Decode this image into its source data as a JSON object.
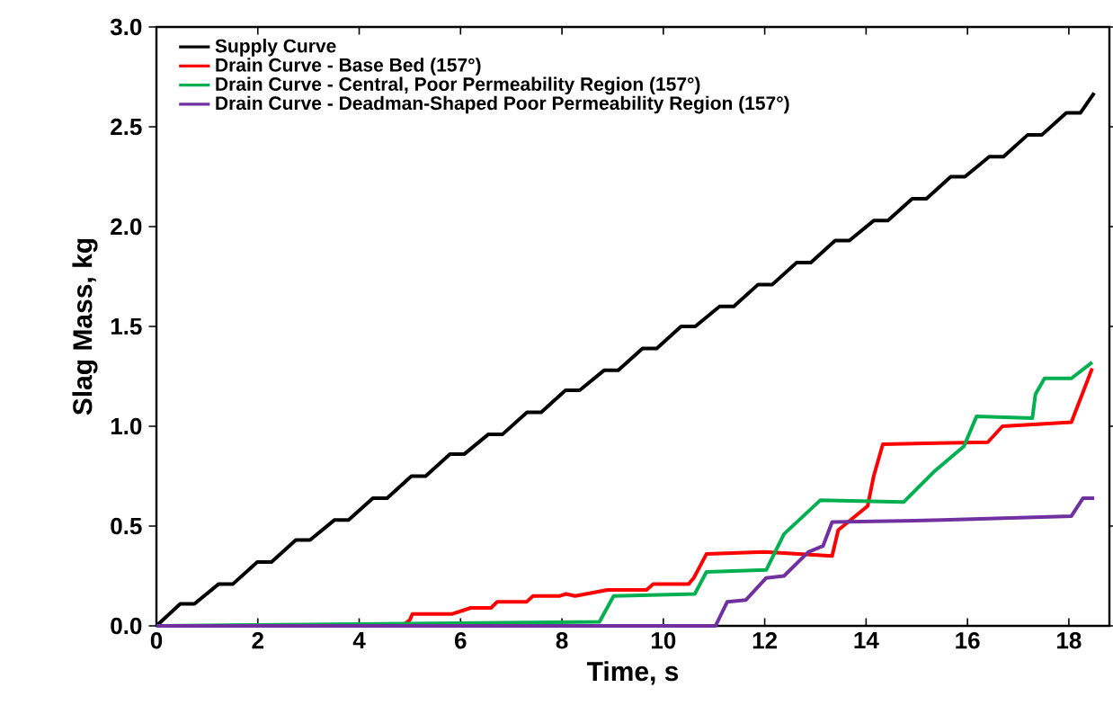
{
  "chart_data": {
    "type": "line",
    "xlabel": "Time, s",
    "ylabel": "Slag Mass, kg",
    "xlim": [
      0,
      18.8
    ],
    "ylim": [
      0,
      3.0
    ],
    "xticks": [
      0,
      2,
      4,
      6,
      8,
      10,
      12,
      14,
      16,
      18
    ],
    "yticks": [
      {
        "value": 0,
        "label": "0.0"
      },
      {
        "value": 0.5,
        "label": "0.5"
      },
      {
        "value": 1,
        "label": "1.0"
      },
      {
        "value": 1.5,
        "label": "1.5"
      },
      {
        "value": 2,
        "label": "2.0"
      },
      {
        "value": 2.5,
        "label": "2.5"
      },
      {
        "value": 3,
        "label": "3.0"
      }
    ],
    "legend": "top left",
    "series": [
      {
        "name": "Supply Curve",
        "color": "#000000",
        "x": [
          0,
          0.47,
          0.75,
          1.23,
          1.51,
          1.99,
          2.27,
          2.75,
          3.03,
          3.51,
          3.79,
          4.27,
          4.55,
          5.03,
          5.31,
          5.79,
          6.07,
          6.55,
          6.83,
          7.31,
          7.59,
          8.07,
          8.35,
          8.83,
          9.11,
          9.59,
          9.87,
          10.35,
          10.63,
          11.11,
          11.39,
          11.87,
          12.15,
          12.63,
          12.91,
          13.39,
          13.67,
          14.15,
          14.43,
          14.91,
          15.19,
          15.67,
          15.95,
          16.43,
          16.71,
          17.19,
          17.47,
          17.95,
          18.23,
          18.5
        ],
        "values": [
          0,
          0.11,
          0.11,
          0.21,
          0.21,
          0.32,
          0.32,
          0.43,
          0.43,
          0.53,
          0.53,
          0.64,
          0.64,
          0.75,
          0.75,
          0.86,
          0.86,
          0.96,
          0.96,
          1.07,
          1.07,
          1.18,
          1.18,
          1.28,
          1.28,
          1.39,
          1.39,
          1.5,
          1.5,
          1.6,
          1.6,
          1.71,
          1.71,
          1.82,
          1.82,
          1.93,
          1.93,
          2.03,
          2.03,
          2.14,
          2.14,
          2.25,
          2.25,
          2.35,
          2.35,
          2.46,
          2.46,
          2.57,
          2.57,
          2.67
        ]
      },
      {
        "name": "Drain Curve - Base  Bed (157°)",
        "color": "#ff0000",
        "x": [
          0,
          4.0,
          4.9,
          5.0,
          5.05,
          5.84,
          6.2,
          6.6,
          6.72,
          7.3,
          7.43,
          7.96,
          8.08,
          8.26,
          8.9,
          9.67,
          9.8,
          10.5,
          10.6,
          10.85,
          12.0,
          13.33,
          13.45,
          14.03,
          14.15,
          14.33,
          16.4,
          16.69,
          18.05,
          18.46
        ],
        "values": [
          0,
          0,
          0.01,
          0.03,
          0.06,
          0.06,
          0.09,
          0.09,
          0.12,
          0.12,
          0.15,
          0.15,
          0.16,
          0.15,
          0.18,
          0.18,
          0.21,
          0.21,
          0.24,
          0.36,
          0.37,
          0.35,
          0.48,
          0.6,
          0.75,
          0.91,
          0.92,
          1.0,
          1.02,
          1.29
        ]
      },
      {
        "name": "Drain Curve - Central, Poor Permeability Region (157°)",
        "color": "#00b050",
        "x": [
          0,
          8.74,
          9.02,
          10.62,
          10.85,
          12.03,
          12.38,
          13.1,
          14.74,
          15.33,
          15.93,
          16.18,
          17.28,
          17.34,
          17.52,
          18.05,
          18.46
        ],
        "values": [
          0,
          0.02,
          0.15,
          0.16,
          0.27,
          0.28,
          0.46,
          0.63,
          0.62,
          0.77,
          0.9,
          1.05,
          1.04,
          1.16,
          1.24,
          1.24,
          1.32
        ]
      },
      {
        "name": "Drain Curve - Deadman-Shaped Poor Permeability Region (157°)",
        "color": "#7030a0",
        "x": [
          0,
          11.03,
          11.26,
          11.63,
          12.03,
          12.38,
          12.86,
          13.15,
          13.33,
          15.5,
          18.05,
          18.28,
          18.5
        ],
        "values": [
          0,
          0,
          0.12,
          0.13,
          0.24,
          0.25,
          0.37,
          0.4,
          0.52,
          0.53,
          0.55,
          0.64,
          0.64
        ]
      }
    ]
  }
}
